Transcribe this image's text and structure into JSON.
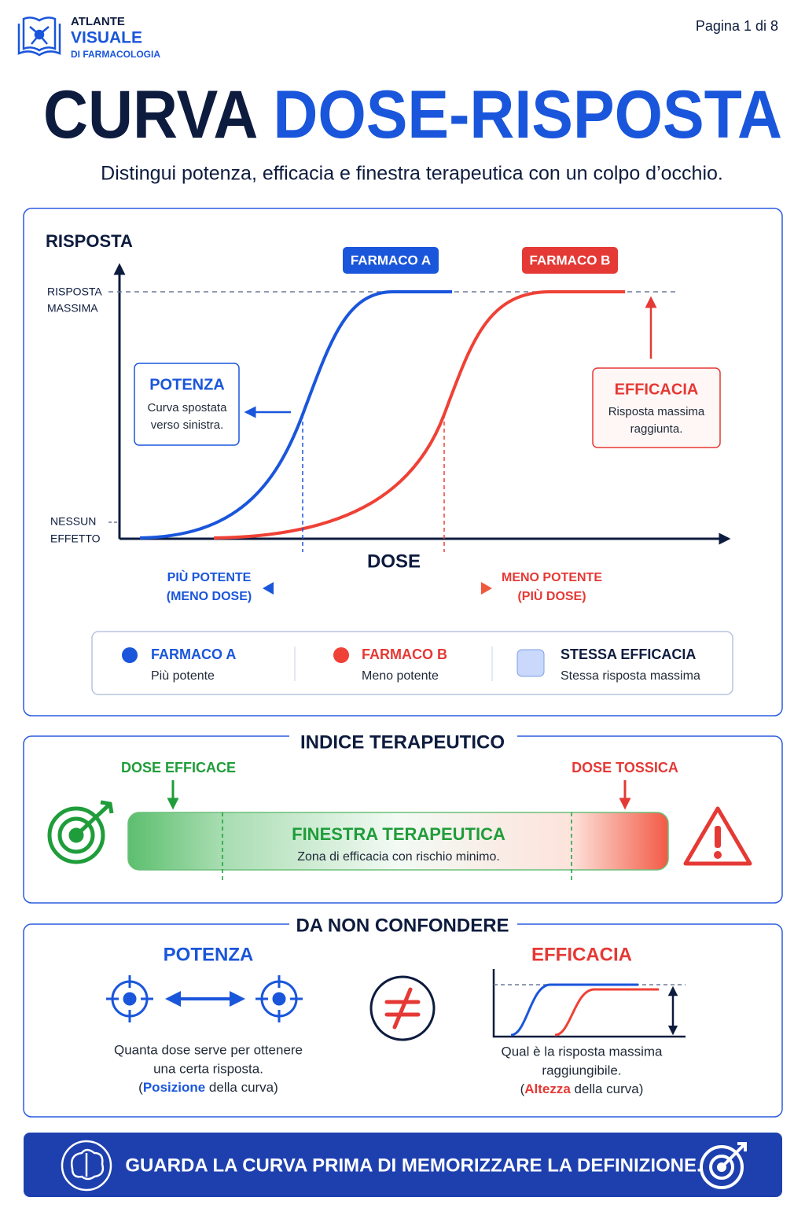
{
  "header": {
    "logo": [
      "ATLANTE",
      "VISUALE",
      "DI FARMACOLOGIA"
    ],
    "page": "Pagina 1 di 8"
  },
  "title": {
    "part1": "CURVA",
    "part2": "DOSE-RISPOSTA"
  },
  "subtitle": "Distingui potenza, efficacia e finestra terapeutica con un colpo d’occhio.",
  "diagram": {
    "y_label": "RISPOSTA",
    "y_top": [
      "RISPOSTA",
      "MASSIMA"
    ],
    "y_bottom": [
      "NESSUN",
      "EFFETTO"
    ],
    "x_label": "DOSE",
    "drug_a": "FARMACO A",
    "drug_b": "FARMACO B",
    "potency": {
      "title": "POTENZA",
      "lines": [
        "Curva spostata",
        "verso sinistra."
      ]
    },
    "efficacy": {
      "title": "EFFICACIA",
      "lines": [
        "Risposta massima",
        "raggiunta."
      ]
    },
    "left_label": [
      "PIÙ POTENTE",
      "(MENO DOSE)"
    ],
    "right_label": [
      "MENO POTENTE",
      "(PIÙ DOSE)"
    ]
  },
  "legend": [
    {
      "title": "FARMACO A",
      "text": "Più potente"
    },
    {
      "title": "FARMACO B",
      "text": "Meno potente"
    },
    {
      "title": "STESSA EFFICACIA",
      "text": "Stessa risposta massima"
    }
  ],
  "index": {
    "title": "INDICE TERAPEUTICO",
    "effective": "DOSE EFFICACE",
    "toxic": "DOSE TOSSICA",
    "window": "FINESTRA TERAPEUTICA",
    "window_text": "Zona di efficacia con rischio minimo."
  },
  "compare": {
    "title": "DA NON CONFONDERE",
    "potency": {
      "title": "POTENZA",
      "lines": [
        "Quanta dose serve per ottenere",
        "una certa risposta."
      ],
      "note": [
        "(",
        "Posizione",
        " della curva)"
      ]
    },
    "efficacy": {
      "title": "EFFICACIA",
      "lines": [
        "Qual è la risposta massima",
        "raggiungibile."
      ],
      "note": [
        "(",
        "Altezza",
        " della curva)"
      ]
    }
  },
  "footer": "GUARDA LA CURVA PRIMA DI MEMORIZZARE LA DEFINIZIONE."
}
